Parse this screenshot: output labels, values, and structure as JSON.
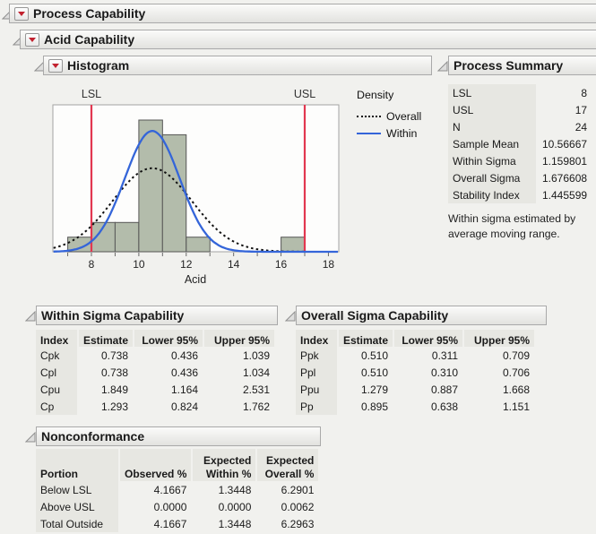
{
  "colors": {
    "bar_fill": "#b3bcab",
    "bar_stroke": "#565656",
    "spec_red": "#e23750",
    "within_blue": "#3465d9",
    "overall_black": "#111111"
  },
  "sections": {
    "process_capability": "Process Capability",
    "acid_capability": "Acid Capability",
    "histogram": "Histogram",
    "process_summary": "Process Summary",
    "within_capability": "Within Sigma Capability",
    "overall_capability": "Overall Sigma Capability",
    "nonconformance": "Nonconformance"
  },
  "chart_data": {
    "type": "histogram",
    "xlabel": "Acid",
    "x_ticks": [
      8,
      10,
      12,
      14,
      16,
      18
    ],
    "x_range": [
      6.4,
      18.44
    ],
    "n": 24,
    "bin_width": 1,
    "bins": [
      {
        "left": 7,
        "count": 1
      },
      {
        "left": 8,
        "count": 2
      },
      {
        "left": 9,
        "count": 2
      },
      {
        "left": 10,
        "count": 9
      },
      {
        "left": 11,
        "count": 8
      },
      {
        "left": 12,
        "count": 1
      },
      {
        "left": 16,
        "count": 1
      }
    ],
    "spec_limits": {
      "lsl": {
        "label": "LSL",
        "value": 8
      },
      "usl": {
        "label": "USL",
        "value": 17
      }
    },
    "legend": {
      "title": "Density",
      "entries": [
        {
          "label": "Overall",
          "style": "dotted"
        },
        {
          "label": "Within",
          "style": "solid"
        }
      ]
    },
    "curves": [
      {
        "name": "Overall",
        "mean": 10.56667,
        "sigma": 1.676608,
        "style": "dotted"
      },
      {
        "name": "Within",
        "mean": 10.56667,
        "sigma": 1.159801,
        "style": "solid"
      }
    ]
  },
  "process_summary": {
    "rows": [
      [
        "LSL",
        "8"
      ],
      [
        "USL",
        "17"
      ],
      [
        "N",
        "24"
      ],
      [
        "Sample Mean",
        "10.56667"
      ],
      [
        "Within Sigma",
        "1.159801"
      ],
      [
        "Overall Sigma",
        "1.676608"
      ],
      [
        "Stability Index",
        "1.445599"
      ]
    ],
    "note": "Within sigma estimated by average moving range."
  },
  "within_capability": {
    "columns": [
      "Index",
      "Estimate",
      "Lower 95%",
      "Upper 95%"
    ],
    "rows": [
      [
        "Cpk",
        "0.738",
        "0.436",
        "1.039"
      ],
      [
        "Cpl",
        "0.738",
        "0.436",
        "1.034"
      ],
      [
        "Cpu",
        "1.849",
        "1.164",
        "2.531"
      ],
      [
        "Cp",
        "1.293",
        "0.824",
        "1.762"
      ]
    ]
  },
  "overall_capability": {
    "columns": [
      "Index",
      "Estimate",
      "Lower 95%",
      "Upper 95%"
    ],
    "rows": [
      [
        "Ppk",
        "0.510",
        "0.311",
        "0.709"
      ],
      [
        "Ppl",
        "0.510",
        "0.310",
        "0.706"
      ],
      [
        "Ppu",
        "1.279",
        "0.887",
        "1.668"
      ],
      [
        "Pp",
        "0.895",
        "0.638",
        "1.151"
      ]
    ]
  },
  "nonconformance": {
    "col_top": [
      "",
      "",
      "Expected",
      "Expected"
    ],
    "col_bottom": [
      "Portion",
      "Observed %",
      "Within %",
      "Overall %"
    ],
    "rows": [
      [
        "Below LSL",
        "4.1667",
        "1.3448",
        "6.2901"
      ],
      [
        "Above USL",
        "0.0000",
        "0.0000",
        "0.0062"
      ],
      [
        "Total Outside",
        "4.1667",
        "1.3448",
        "6.2963"
      ]
    ]
  }
}
